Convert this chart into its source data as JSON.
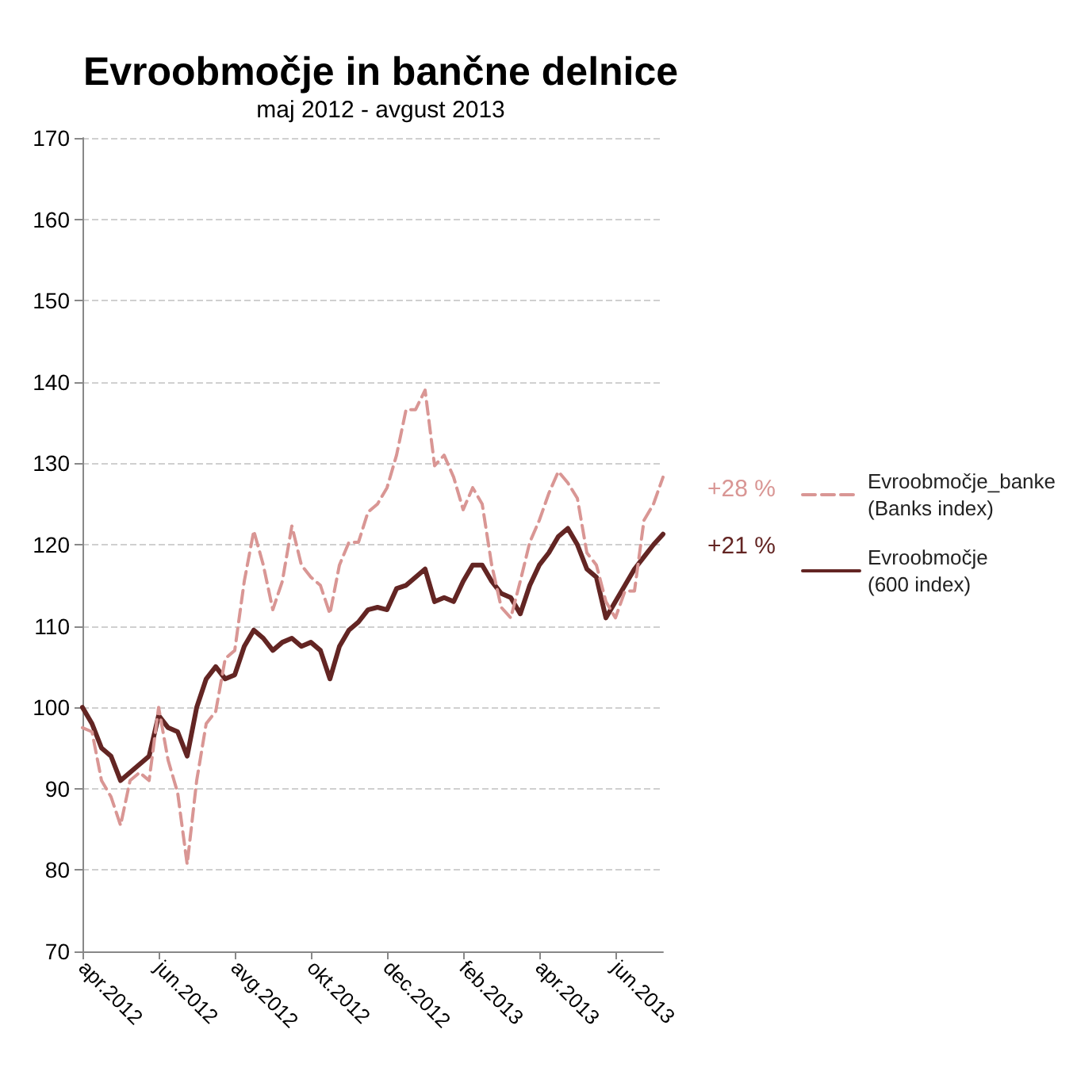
{
  "chart_data": {
    "type": "line",
    "title": "Evroobmočje in bančne delnice",
    "subtitle": "maj 2012 - avgust 2013",
    "categories": [
      "apr.2012",
      null,
      null,
      null,
      null,
      null,
      null,
      null,
      "jun.2012",
      null,
      null,
      null,
      null,
      null,
      null,
      null,
      "avg.2012",
      null,
      null,
      null,
      null,
      null,
      null,
      null,
      "okt.2012",
      null,
      null,
      null,
      null,
      null,
      null,
      null,
      "dec.2012",
      null,
      null,
      null,
      null,
      null,
      null,
      null,
      "feb.2013",
      null,
      null,
      null,
      null,
      null,
      null,
      null,
      "apr.2013",
      null,
      null,
      null,
      null,
      null,
      null,
      null,
      "jun.2013",
      null,
      null,
      null,
      null,
      null
    ],
    "series": [
      {
        "name": "Evroobmočje_banke\n(Banks index)",
        "color": "#d99694",
        "line_style": "dashed",
        "values": [
          97.5,
          97,
          91,
          89,
          85.5,
          91,
          92,
          91,
          100,
          93.5,
          89.5,
          80.7,
          91,
          98,
          99.5,
          106,
          107,
          115.5,
          121.7,
          117.5,
          112,
          115.5,
          122.3,
          117.5,
          116,
          115,
          111.5,
          117.5,
          120.3,
          120.3,
          124,
          125,
          127,
          131,
          136.6,
          136.6,
          139,
          129.7,
          131,
          128.3,
          124.3,
          127,
          125,
          117.5,
          112.3,
          111,
          115.5,
          120.3,
          123,
          126.3,
          129,
          127.6,
          125.7,
          119,
          117.5,
          113,
          111,
          114.3,
          114.3,
          123,
          125,
          128.3
        ]
      },
      {
        "name": "Evroobmočje\n(600 index)",
        "color": "#632523",
        "line_style": "solid",
        "values": [
          100,
          98,
          95,
          94,
          91,
          92,
          93,
          94,
          99,
          97.5,
          97,
          94,
          100,
          103.5,
          105,
          103.5,
          104,
          107.5,
          109.5,
          108.5,
          107,
          108,
          108.5,
          107.5,
          108,
          107,
          103.5,
          107.5,
          109.5,
          110.5,
          112,
          112.3,
          112,
          114.6,
          115,
          116,
          117,
          113,
          113.5,
          113,
          115.5,
          117.5,
          117.5,
          115.5,
          114,
          113.5,
          111.5,
          115,
          117.5,
          119,
          121,
          122,
          120,
          117,
          116,
          111,
          113,
          115,
          117,
          118.5,
          120,
          121.3
        ]
      }
    ],
    "ylim": [
      70,
      170
    ],
    "yticks": [
      70,
      80,
      90,
      100,
      110,
      120,
      130,
      140,
      150,
      160,
      170
    ],
    "grid": "y",
    "legend": "right",
    "marker": "none",
    "annotations": [
      "+28 %",
      "+21 %"
    ]
  }
}
